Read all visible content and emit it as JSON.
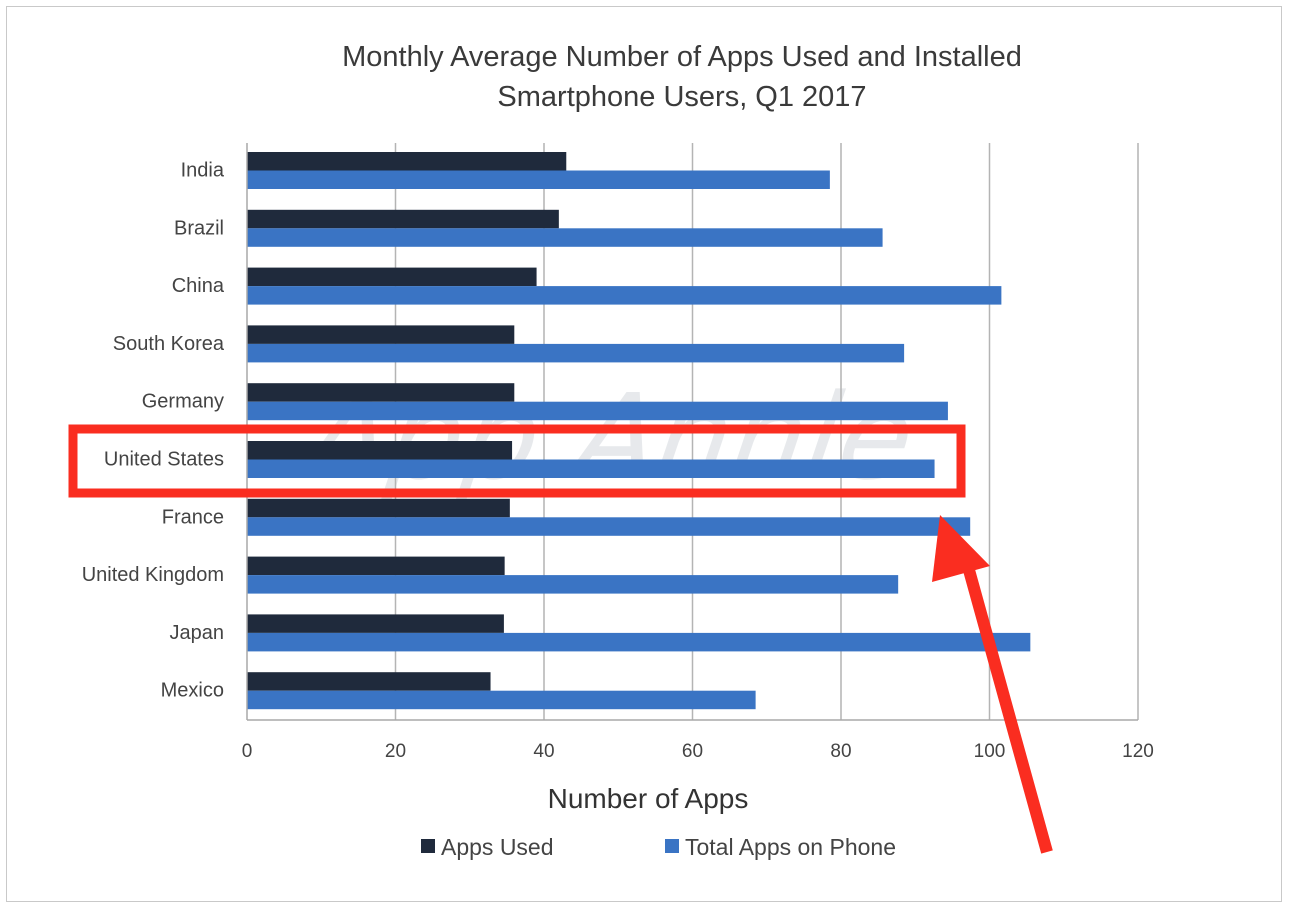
{
  "chart_data": {
    "type": "bar",
    "orientation": "horizontal",
    "title_lines": [
      "Monthly Average Number of Apps Used and Installed",
      "Smartphone Users, Q1 2017"
    ],
    "xlabel": "Number of Apps",
    "ylabel": "",
    "xlim": [
      0,
      120
    ],
    "xticks": [
      0,
      20,
      40,
      60,
      80,
      100,
      120
    ],
    "grid": true,
    "legend_position": "bottom",
    "categories": [
      "India",
      "Brazil",
      "China",
      "South Korea",
      "Germany",
      "United States",
      "France",
      "United Kingdom",
      "Japan",
      "Mexico"
    ],
    "series": [
      {
        "name": "Apps Used",
        "color": "#1f2a3c",
        "values": [
          43,
          42,
          39,
          36,
          36,
          35.7,
          35.4,
          34.7,
          34.6,
          32.8
        ]
      },
      {
        "name": "Total Apps on Phone",
        "color": "#3a74c4",
        "values": [
          78.5,
          85.6,
          101.6,
          88.5,
          94.4,
          92.6,
          97.4,
          87.7,
          105.5,
          68.5
        ]
      }
    ],
    "watermark": "App Annie"
  },
  "annotation": {
    "highlight_category": "United States",
    "highlight_color": "#fa2d20",
    "arrow_color": "#fa2d20"
  }
}
